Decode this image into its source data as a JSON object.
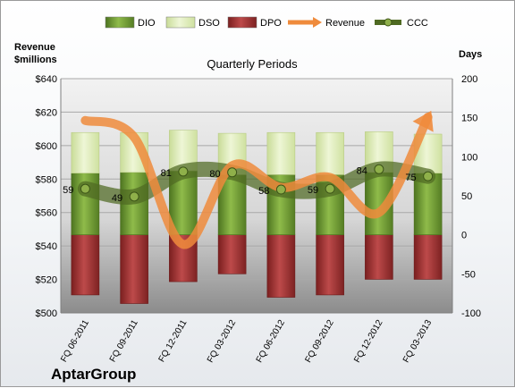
{
  "chart_data": {
    "type": "bar",
    "title": "Quarterly Periods",
    "company": "AptarGroup",
    "y_left_label": "Revenue\n$millions",
    "y_right_label": "Days",
    "y_left_range": [
      500,
      640
    ],
    "y_left_ticks": [
      "$500",
      "$520",
      "$540",
      "$560",
      "$580",
      "$600",
      "$620",
      "$640"
    ],
    "y_right_range": [
      -100,
      200
    ],
    "y_right_ticks": [
      "-100",
      "-50",
      "0",
      "50",
      "100",
      "150",
      "200"
    ],
    "categories": [
      "FQ 06-2011",
      "FQ 09-2011",
      "FQ 12-2011",
      "FQ 03-2012",
      "FQ 06-2012",
      "FQ 09-2012",
      "FQ 12-2012",
      "FQ 03-2013"
    ],
    "legend_position": "top",
    "legend": [
      "DIO",
      "DSO",
      "DPO",
      "Revenue",
      "CCC"
    ],
    "colors": {
      "DIO": "#6f9a2c",
      "DSO": "#dcecb2",
      "DPO": "#9b2d2d",
      "Revenue": "#ef8b3c",
      "CCC": "#4f6a22"
    },
    "series": [
      {
        "name": "DIO",
        "axis": "right",
        "values": [
          79,
          80,
          82,
          77,
          77,
          77,
          80,
          79
        ]
      },
      {
        "name": "DSO",
        "axis": "right",
        "values": [
          52,
          51,
          52,
          53,
          54,
          54,
          52,
          50
        ]
      },
      {
        "name": "DPO",
        "axis": "right",
        "values": [
          -77,
          -88,
          -60,
          -50,
          -80,
          -77,
          -57,
          -57
        ]
      },
      {
        "name": "Revenue",
        "axis": "left",
        "values": [
          615,
          605,
          541,
          588,
          575,
          581,
          560,
          617
        ]
      },
      {
        "name": "CCC",
        "axis": "right",
        "values": [
          59,
          49,
          81,
          80,
          58,
          59,
          84,
          75
        ]
      }
    ],
    "ccc_labels": [
      "59",
      "49",
      "81",
      "80",
      "58",
      "59",
      "84",
      "75"
    ],
    "grid": true
  }
}
